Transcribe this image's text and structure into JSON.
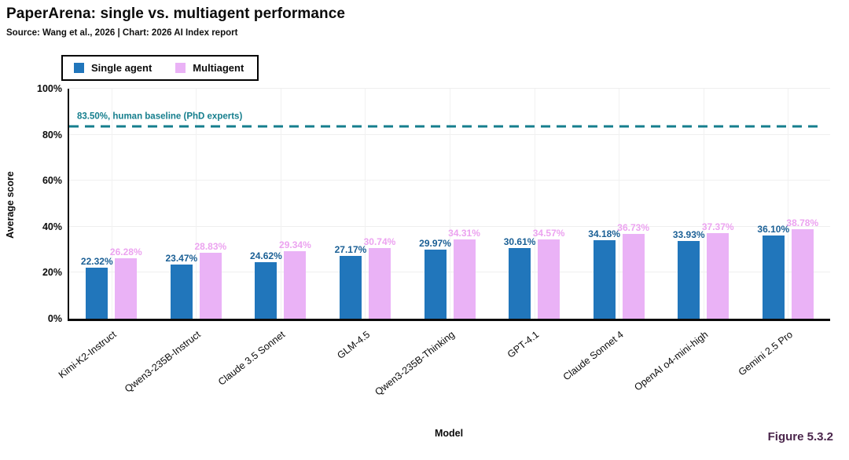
{
  "header": {
    "title": "PaperArena: single vs. multiagent performance",
    "subtitle": "Source: Wang et al., 2026 | Chart: 2026 AI Index report"
  },
  "figure_label": "Figure 5.3.2",
  "colors": {
    "single_agent_bar": "#2176bb",
    "single_agent_label": "#1a5f95",
    "multiagent_bar": "#eab2f6",
    "multiagent_label": "#eca3f0",
    "baseline": "#157e8d",
    "figure_label": "#4a254b",
    "axis": "#0b0b0b"
  },
  "chart_data": {
    "type": "bar",
    "title": "PaperArena: single vs. multiagent performance",
    "xlabel": "Model",
    "ylabel": "Average score",
    "ylim": [
      0,
      100
    ],
    "yticks": [
      0,
      20,
      40,
      60,
      80,
      100
    ],
    "ytick_suffix": "%",
    "grid": true,
    "legend_position": "top-left",
    "categories": [
      "Kimi-K2-Instruct",
      "Qwen3-235B-Instruct",
      "Claude 3.5 Sonnet",
      "GLM-4.5",
      "Qwen3-235B-Thinking",
      "GPT-4.1",
      "Claude Sonnet 4",
      "OpenAI o4-mini-high",
      "Gemini 2.5 Pro"
    ],
    "series": [
      {
        "name": "Single agent",
        "values": [
          22.32,
          23.47,
          24.62,
          27.17,
          29.97,
          30.61,
          34.18,
          33.93,
          36.1
        ]
      },
      {
        "name": "Multiagent",
        "values": [
          26.28,
          28.83,
          29.34,
          30.74,
          34.31,
          34.57,
          36.73,
          37.37,
          38.78
        ]
      }
    ],
    "value_label_format": "2dp_percent",
    "baseline": {
      "value": 83.5,
      "label": "83.50%, human baseline (PhD experts)"
    }
  }
}
